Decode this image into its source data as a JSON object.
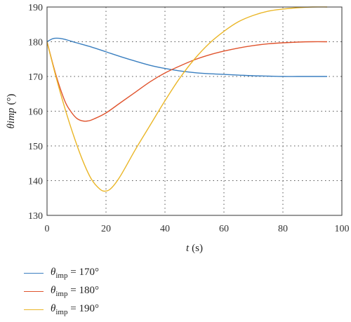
{
  "chart_data": {
    "type": "line",
    "xlabel": "t",
    "xlabel_unit": "(s)",
    "ylabel": "θimp",
    "ylabel_unit": "(°)",
    "xlim": [
      0,
      100
    ],
    "ylim": [
      130,
      190
    ],
    "x_ticks": [
      0,
      20,
      40,
      60,
      80,
      100
    ],
    "y_ticks": [
      130,
      140,
      150,
      160,
      170,
      180,
      190
    ],
    "grid": "dotted",
    "legend_position": "bottom-left",
    "series": [
      {
        "name": "θimp = 170°",
        "label_var": "θ",
        "label_sub": "imp",
        "label_rest": " = 170°",
        "color": "#3a7fc0",
        "x": [
          0,
          2,
          4,
          6,
          8,
          10,
          15,
          20,
          25,
          30,
          35,
          40,
          45,
          50,
          55,
          60,
          65,
          70,
          75,
          80,
          85,
          90,
          95
        ],
        "y": [
          180,
          180.9,
          181.0,
          180.7,
          180.2,
          179.7,
          178.5,
          177.1,
          175.7,
          174.4,
          173.2,
          172.3,
          171.6,
          171.1,
          170.8,
          170.6,
          170.4,
          170.2,
          170.1,
          170.0,
          170.0,
          170.0,
          170.0
        ]
      },
      {
        "name": "θimp = 180°",
        "label_var": "θ",
        "label_sub": "imp",
        "label_rest": " = 180°",
        "color": "#e0542e",
        "x": [
          0,
          3,
          6,
          8,
          10,
          12,
          14,
          16,
          20,
          25,
          30,
          35,
          40,
          45,
          50,
          55,
          60,
          65,
          70,
          75,
          80,
          85,
          90,
          95
        ],
        "y": [
          180,
          170.5,
          163.0,
          160.0,
          158.0,
          157.2,
          157.2,
          157.8,
          159.5,
          162.5,
          165.5,
          168.5,
          171.0,
          173.0,
          174.8,
          176.2,
          177.3,
          178.2,
          178.9,
          179.4,
          179.7,
          179.9,
          180.0,
          180.0
        ]
      },
      {
        "name": "θimp = 190°",
        "label_var": "θ",
        "label_sub": "imp",
        "label_rest": " = 190°",
        "color": "#eab627",
        "x": [
          0,
          3,
          6,
          9,
          12,
          15,
          18,
          20,
          22,
          25,
          30,
          35,
          40,
          45,
          50,
          55,
          60,
          65,
          70,
          75,
          80,
          85,
          90,
          95
        ],
        "y": [
          180,
          170.0,
          161.0,
          153.0,
          146.0,
          140.5,
          137.5,
          137.0,
          138.0,
          141.5,
          149.0,
          156.0,
          163.0,
          169.5,
          175.0,
          179.5,
          183.0,
          185.8,
          187.6,
          188.8,
          189.4,
          189.8,
          190.0,
          190.0
        ]
      }
    ]
  }
}
